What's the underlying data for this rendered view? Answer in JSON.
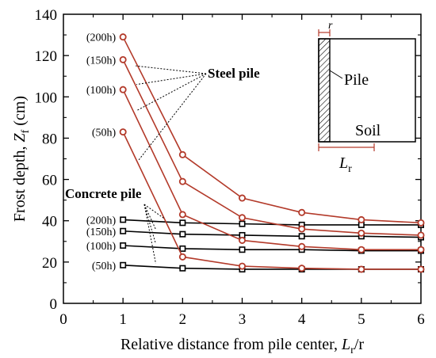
{
  "chart_data": {
    "type": "line",
    "x_axis": {
      "label_main": "Relative distance from pile center, ",
      "label_var": "L",
      "label_sub": "r",
      "label_tail": "/r",
      "min": 0,
      "max": 6,
      "ticks": [
        "0",
        "1",
        "2",
        "3",
        "4",
        "5",
        "6"
      ]
    },
    "y_axis": {
      "label_main": "Frost depth, ",
      "label_var": "Z",
      "label_sub": "f",
      "label_tail": " (cm)",
      "min": 0,
      "max": 140,
      "ticks": [
        "0",
        "20",
        "40",
        "60",
        "80",
        "100",
        "120",
        "140"
      ]
    },
    "x": [
      1,
      2,
      3,
      4,
      5,
      6
    ],
    "groups": [
      {
        "name": "Steel pile",
        "color": "#b33a2a",
        "marker": "circle",
        "series": [
          {
            "name": "(200h)",
            "values": [
              129,
              72,
              51,
              44,
              40.5,
              39
            ]
          },
          {
            "name": "(150h)",
            "values": [
              118,
              59,
              41.5,
              36,
              34,
              33
            ]
          },
          {
            "name": "(100h)",
            "values": [
              103.5,
              43,
              30.5,
              27.5,
              26,
              26
            ]
          },
          {
            "name": "(50h)",
            "values": [
              83,
              22.5,
              18,
              17,
              16.5,
              16.5
            ]
          }
        ]
      },
      {
        "name": "Concrete pile",
        "color": "#000000",
        "marker": "square",
        "series": [
          {
            "name": "(200h)",
            "values": [
              40.5,
              39,
              38.5,
              38,
              38,
              38
            ]
          },
          {
            "name": "(150h)",
            "values": [
              35,
              33.5,
              33,
              32.5,
              32.5,
              32
            ]
          },
          {
            "name": "(100h)",
            "values": [
              28,
              26.5,
              26,
              26,
              25.5,
              25.5
            ]
          },
          {
            "name": "(50h)",
            "values": [
              18.5,
              17,
              16.5,
              16.5,
              16.5,
              16.5
            ]
          }
        ]
      }
    ],
    "inset": {
      "r_label": "r",
      "pile_label": "Pile",
      "soil_label": "Soil",
      "lr_var": "L",
      "lr_sub": "r"
    }
  }
}
